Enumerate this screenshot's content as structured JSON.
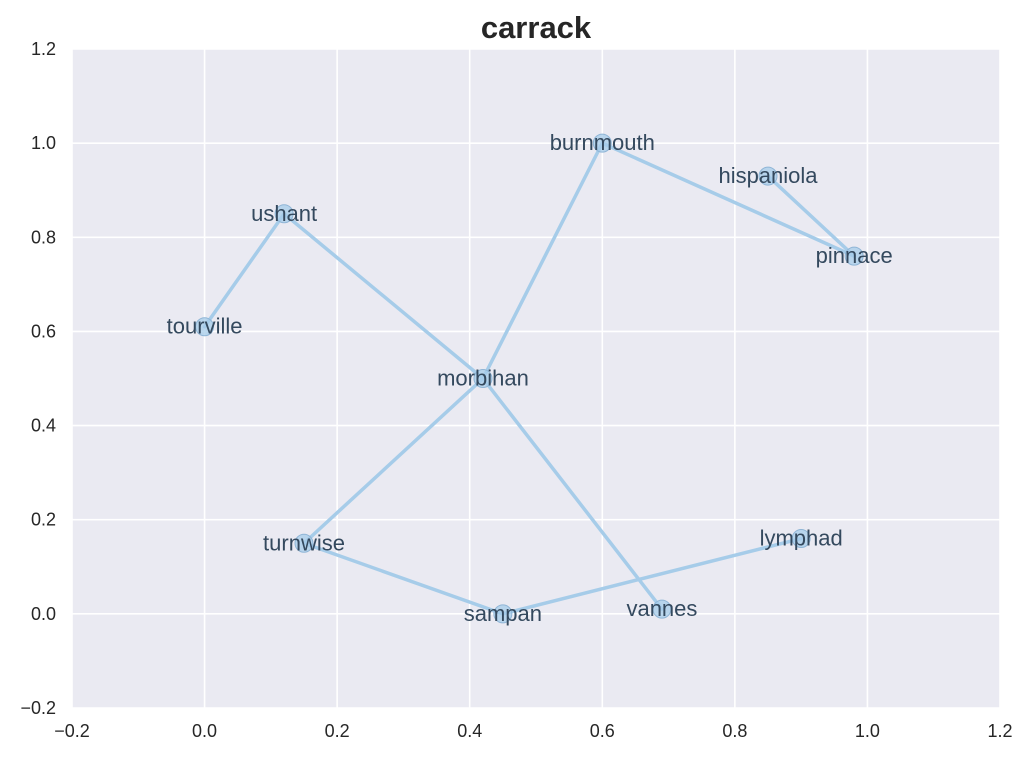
{
  "chart_data": {
    "type": "network",
    "title": "carrack",
    "xlim": [
      -0.2,
      1.2
    ],
    "ylim": [
      -0.2,
      1.2
    ],
    "xticks": [
      "−0.2",
      "0.0",
      "0.2",
      "0.4",
      "0.6",
      "0.8",
      "1.0",
      "1.2"
    ],
    "yticks": [
      "−0.2",
      "0.0",
      "0.2",
      "0.4",
      "0.6",
      "0.8",
      "1.0",
      "1.2"
    ],
    "xtick_values": [
      -0.2,
      0.0,
      0.2,
      0.4,
      0.6,
      0.8,
      1.0,
      1.2
    ],
    "ytick_values": [
      -0.2,
      0.0,
      0.2,
      0.4,
      0.6,
      0.8,
      1.0,
      1.2
    ],
    "grid": true,
    "colors": {
      "background": "#eaeaf2",
      "grid": "#ffffff",
      "edge": "#a6cce9",
      "node_fill": "#a6cce9",
      "node_stroke": "#8fb5d6",
      "label": "#34495e"
    },
    "nodes": [
      {
        "name": "tourville",
        "x": 0.0,
        "y": 0.61
      },
      {
        "name": "ushant",
        "x": 0.12,
        "y": 0.85
      },
      {
        "name": "morbihan",
        "x": 0.42,
        "y": 0.5
      },
      {
        "name": "burnmouth",
        "x": 0.6,
        "y": 1.0
      },
      {
        "name": "hispaniola",
        "x": 0.85,
        "y": 0.93
      },
      {
        "name": "pinnace",
        "x": 0.98,
        "y": 0.76
      },
      {
        "name": "turnwise",
        "x": 0.15,
        "y": 0.15
      },
      {
        "name": "sampan",
        "x": 0.45,
        "y": 0.0
      },
      {
        "name": "vannes",
        "x": 0.69,
        "y": 0.01
      },
      {
        "name": "lymphad",
        "x": 0.9,
        "y": 0.16
      }
    ],
    "edges": [
      [
        "tourville",
        "ushant"
      ],
      [
        "ushant",
        "morbihan"
      ],
      [
        "morbihan",
        "burnmouth"
      ],
      [
        "burnmouth",
        "pinnace"
      ],
      [
        "pinnace",
        "hispaniola"
      ],
      [
        "morbihan",
        "turnwise"
      ],
      [
        "morbihan",
        "vannes"
      ],
      [
        "turnwise",
        "sampan"
      ],
      [
        "sampan",
        "lymphad"
      ]
    ]
  }
}
